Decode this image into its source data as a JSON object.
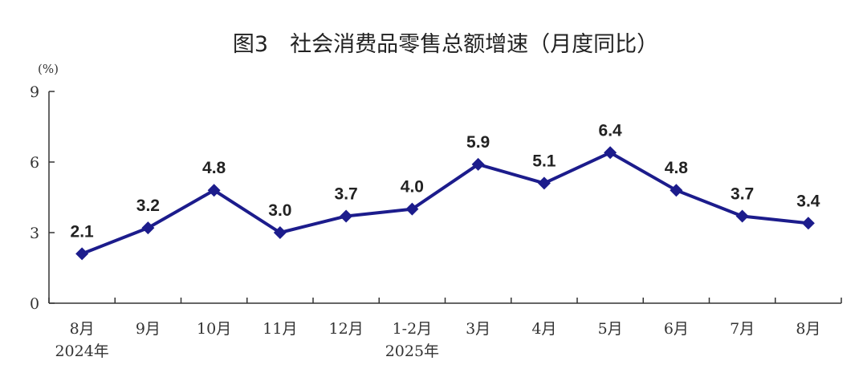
{
  "chart_data": {
    "type": "line",
    "title": "图3　社会消费品零售总额增速（月度同比）",
    "ylabel": "(%)",
    "xlabel": "",
    "categories": [
      "8月",
      "9月",
      "10月",
      "11月",
      "12月",
      "1-2月",
      "3月",
      "4月",
      "5月",
      "6月",
      "7月",
      "8月"
    ],
    "year_labels": [
      {
        "category_index": 0,
        "text": "2024年"
      },
      {
        "category_index": 5,
        "text": "2025年"
      }
    ],
    "series": [
      {
        "values": [
          2.1,
          3.2,
          4.8,
          3.0,
          3.7,
          4.0,
          5.9,
          5.1,
          6.4,
          4.8,
          3.7,
          3.4
        ]
      }
    ],
    "data_labels": [
      "2.1",
      "3.2",
      "4.8",
      "3.0",
      "3.7",
      "4.0",
      "5.9",
      "5.1",
      "6.4",
      "4.8",
      "3.7",
      "3.4"
    ],
    "ylim": [
      0,
      9
    ],
    "yticks": [
      0,
      3,
      6,
      9
    ],
    "grid": false,
    "legend": "none",
    "colors": {
      "line": "#1c1c8c",
      "marker": "#1c1c8c",
      "axis": "#333333"
    },
    "marker": "diamond"
  }
}
